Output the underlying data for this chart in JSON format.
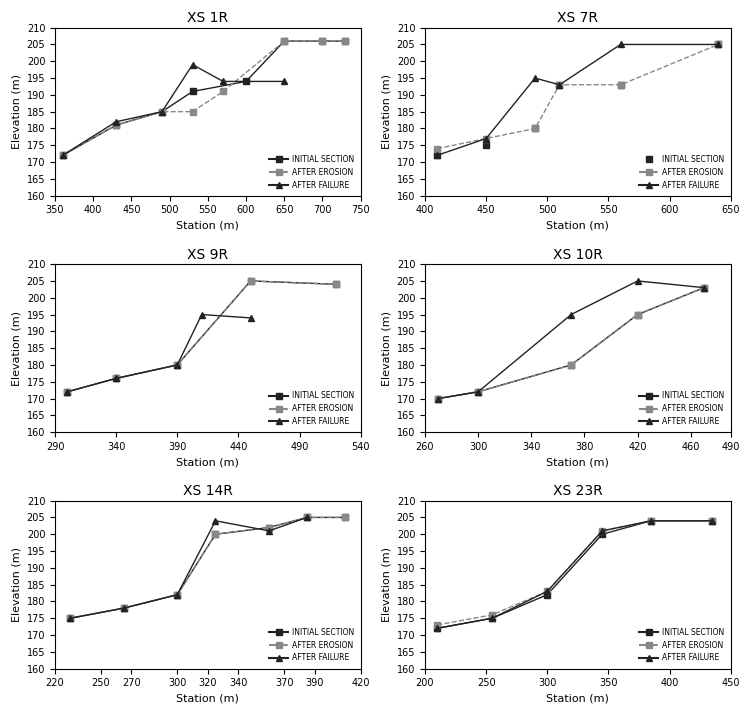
{
  "subplots": [
    {
      "title": "XS 1R",
      "xlabel": "Station (m)",
      "ylabel": "Elevation (m)",
      "xlim": [
        350,
        750
      ],
      "ylim": [
        160,
        210
      ],
      "xticks": [
        350,
        400,
        450,
        500,
        550,
        600,
        650,
        700,
        750
      ],
      "yticks": [
        160,
        165,
        170,
        175,
        180,
        185,
        190,
        195,
        200,
        205,
        210
      ],
      "initial": {
        "x": [
          360,
          430,
          490,
          530,
          600,
          650,
          700,
          730
        ],
        "y": [
          172,
          181,
          185,
          191,
          194,
          206,
          206,
          206
        ]
      },
      "erosion": {
        "x": [
          360,
          430,
          490,
          530,
          570,
          650,
          700,
          730
        ],
        "y": [
          172,
          181,
          185,
          185,
          191,
          206,
          206,
          206
        ]
      },
      "failure": {
        "x": [
          360,
          430,
          490,
          530,
          570,
          650
        ],
        "y": [
          172,
          182,
          185,
          199,
          194,
          194
        ]
      },
      "initial_no_line": false,
      "legend_loc": "lower right"
    },
    {
      "title": "XS 7R",
      "xlabel": "Station (m)",
      "ylabel": "Elevation (m)",
      "xlim": [
        400,
        650
      ],
      "ylim": [
        160,
        210
      ],
      "xticks": [
        400,
        450,
        500,
        550,
        600,
        650
      ],
      "yticks": [
        160,
        165,
        170,
        175,
        180,
        185,
        190,
        195,
        200,
        205,
        210
      ],
      "initial": {
        "x": [
          410,
          450,
          490,
          510,
          560,
          640
        ],
        "y": [
          172,
          175,
          180,
          193,
          193,
          205
        ]
      },
      "erosion": {
        "x": [
          410,
          450,
          490,
          510,
          560,
          640
        ],
        "y": [
          174,
          177,
          180,
          193,
          193,
          205
        ]
      },
      "failure": {
        "x": [
          410,
          450,
          490,
          510,
          560,
          640
        ],
        "y": [
          172,
          177,
          195,
          193,
          205,
          205
        ]
      },
      "initial_no_line": true,
      "legend_loc": "lower right"
    },
    {
      "title": "XS 9R",
      "xlabel": "Station (m)",
      "ylabel": "Elevation (m)",
      "xlim": [
        290,
        540
      ],
      "ylim": [
        160,
        210
      ],
      "xticks": [
        290,
        340,
        390,
        440,
        490,
        540
      ],
      "yticks": [
        160,
        165,
        170,
        175,
        180,
        185,
        190,
        195,
        200,
        205,
        210
      ],
      "initial": {
        "x": [
          300,
          340,
          390,
          450,
          520
        ],
        "y": [
          172,
          176,
          180,
          205,
          204
        ]
      },
      "erosion": {
        "x": [
          300,
          340,
          390,
          450,
          520
        ],
        "y": [
          172,
          176,
          180,
          205,
          204
        ]
      },
      "failure": {
        "x": [
          300,
          340,
          390,
          410,
          450
        ],
        "y": [
          172,
          176,
          180,
          195,
          194
        ]
      },
      "initial_no_line": false,
      "legend_loc": "lower right"
    },
    {
      "title": "XS 10R",
      "xlabel": "Station (m)",
      "ylabel": "Elevation (m)",
      "xlim": [
        260,
        490
      ],
      "ylim": [
        160,
        210
      ],
      "xticks": [
        260,
        300,
        340,
        380,
        420,
        460,
        490
      ],
      "yticks": [
        160,
        165,
        170,
        175,
        180,
        185,
        190,
        195,
        200,
        205,
        210
      ],
      "initial": {
        "x": [
          270,
          300,
          370,
          420,
          470
        ],
        "y": [
          170,
          172,
          180,
          195,
          203
        ]
      },
      "erosion": {
        "x": [
          270,
          300,
          370,
          420,
          470
        ],
        "y": [
          170,
          172,
          180,
          195,
          203
        ]
      },
      "failure": {
        "x": [
          270,
          300,
          370,
          420,
          470
        ],
        "y": [
          170,
          172,
          195,
          205,
          203
        ]
      },
      "initial_no_line": false,
      "legend_loc": "lower right"
    },
    {
      "title": "XS 14R",
      "xlabel": "Station (m)",
      "ylabel": "Elevation (m)",
      "xlim": [
        220,
        420
      ],
      "ylim": [
        160,
        210
      ],
      "xticks": [
        220,
        250,
        270,
        300,
        320,
        340,
        370,
        390,
        420
      ],
      "yticks": [
        160,
        165,
        170,
        175,
        180,
        185,
        190,
        195,
        200,
        205,
        210
      ],
      "initial": {
        "x": [
          230,
          265,
          300,
          325,
          360,
          385,
          410
        ],
        "y": [
          175,
          178,
          182,
          200,
          202,
          205,
          205
        ]
      },
      "erosion": {
        "x": [
          230,
          265,
          300,
          325,
          360,
          385,
          410
        ],
        "y": [
          175,
          178,
          182,
          200,
          202,
          205,
          205
        ]
      },
      "failure": {
        "x": [
          230,
          265,
          300,
          325,
          360,
          385
        ],
        "y": [
          175,
          178,
          182,
          204,
          201,
          205
        ]
      },
      "initial_no_line": false,
      "legend_loc": "lower right"
    },
    {
      "title": "XS 23R",
      "xlabel": "Station (m)",
      "ylabel": "Elevation (m)",
      "xlim": [
        200,
        450
      ],
      "ylim": [
        160,
        210
      ],
      "xticks": [
        200,
        250,
        300,
        350,
        400,
        450
      ],
      "yticks": [
        160,
        165,
        170,
        175,
        180,
        185,
        190,
        195,
        200,
        205,
        210
      ],
      "initial": {
        "x": [
          210,
          255,
          300,
          345,
          385,
          435
        ],
        "y": [
          172,
          175,
          182,
          200,
          204,
          204
        ]
      },
      "erosion": {
        "x": [
          210,
          255,
          300,
          345,
          385,
          435
        ],
        "y": [
          173,
          176,
          183,
          201,
          204,
          204
        ]
      },
      "failure": {
        "x": [
          210,
          255,
          300,
          345,
          385,
          435
        ],
        "y": [
          172,
          175,
          183,
          201,
          204,
          204
        ]
      },
      "initial_no_line": false,
      "legend_loc": "lower right"
    }
  ],
  "initial_color": "#222222",
  "erosion_color": "#888888",
  "failure_color": "#222222",
  "initial_linestyle": "-",
  "erosion_linestyle": "--",
  "failure_linestyle": "-",
  "initial_marker": "s",
  "erosion_marker": "s",
  "failure_marker": "^",
  "markersize": 4,
  "linewidth": 1.0,
  "legend_labels": [
    "INITIAL SECTION",
    "AFTER EROSION",
    "AFTER FAILURE"
  ]
}
